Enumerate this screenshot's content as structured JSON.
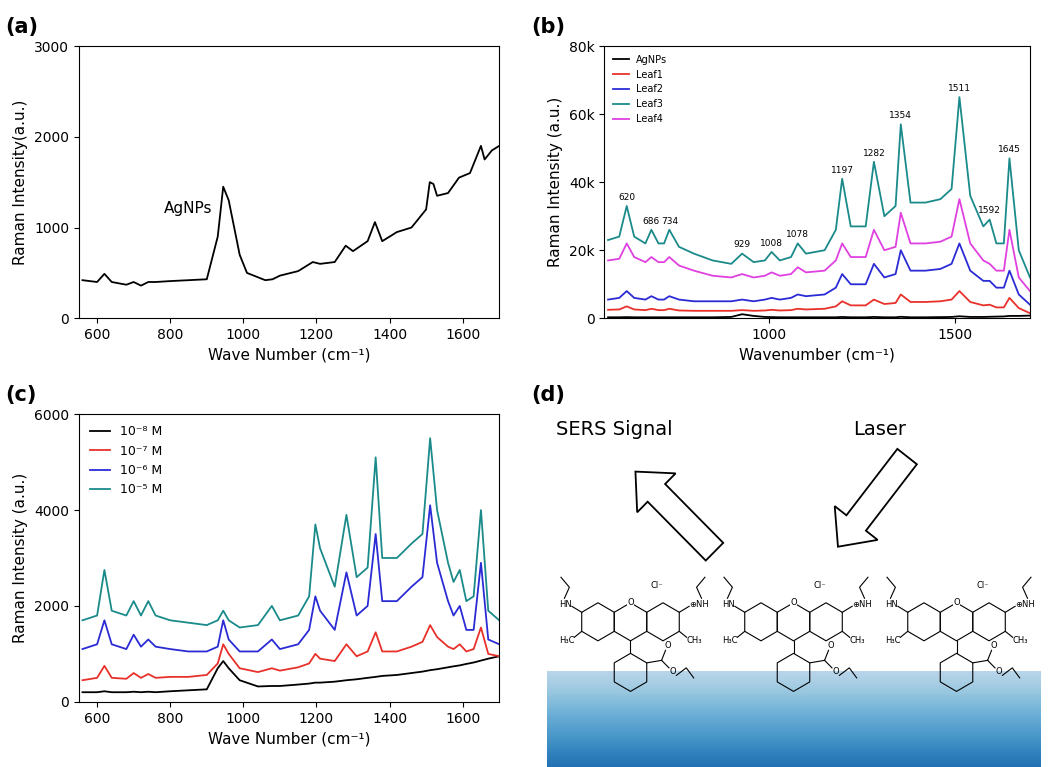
{
  "chart_data": [
    {
      "type": "line",
      "panel_label": "(a)",
      "x_label": "Wave Number (cm⁻¹)",
      "y_label": "Raman Intensity(a.u.)",
      "x": [
        560,
        600,
        620,
        640,
        680,
        700,
        720,
        740,
        760,
        800,
        850,
        900,
        930,
        945,
        960,
        975,
        990,
        1010,
        1060,
        1080,
        1100,
        1150,
        1190,
        1210,
        1250,
        1280,
        1300,
        1340,
        1360,
        1380,
        1420,
        1460,
        1500,
        1510,
        1520,
        1530,
        1560,
        1590,
        1620,
        1650,
        1660,
        1680,
        1700
      ],
      "values": [
        420,
        400,
        490,
        400,
        370,
        400,
        360,
        400,
        400,
        410,
        420,
        430,
        900,
        1450,
        1300,
        1000,
        700,
        500,
        420,
        430,
        470,
        520,
        620,
        600,
        620,
        800,
        740,
        850,
        1060,
        850,
        950,
        1000,
        1200,
        1500,
        1480,
        1350,
        1380,
        1550,
        1600,
        1900,
        1750,
        1850,
        1900
      ],
      "color": "#000000",
      "annotations": [
        {
          "text": "AgNPs",
          "x": 945
        }
      ],
      "xlim": [
        550,
        1700
      ],
      "xticks": [
        600,
        800,
        1000,
        1200,
        1400,
        1600
      ],
      "ylim": [
        0,
        3000
      ],
      "yticks": [
        0,
        1000,
        2000,
        3000
      ],
      "grid": false
    },
    {
      "type": "line",
      "panel_label": "(b)",
      "x_label": "Wavenumber (cm⁻¹)",
      "y_label": "Raman Intensity (a.u.)",
      "x": [
        570,
        600,
        620,
        640,
        670,
        686,
        705,
        720,
        734,
        760,
        800,
        850,
        900,
        929,
        960,
        990,
        1008,
        1030,
        1060,
        1078,
        1100,
        1150,
        1180,
        1197,
        1220,
        1260,
        1282,
        1310,
        1340,
        1354,
        1380,
        1420,
        1460,
        1490,
        1511,
        1540,
        1575,
        1592,
        1610,
        1630,
        1645,
        1670,
        1700
      ],
      "series": [
        {
          "name": "AgNPs",
          "color": "#000000",
          "values": [
            300,
            300,
            350,
            300,
            300,
            300,
            300,
            300,
            300,
            300,
            300,
            300,
            400,
            1200,
            700,
            400,
            350,
            300,
            300,
            300,
            300,
            300,
            300,
            400,
            300,
            300,
            400,
            300,
            300,
            450,
            300,
            300,
            350,
            400,
            600,
            400,
            400,
            450,
            500,
            550,
            700,
            700,
            800
          ]
        },
        {
          "name": "Leaf1",
          "color": "#e8312a",
          "values": [
            2500,
            2600,
            3500,
            2600,
            2400,
            2800,
            2400,
            2400,
            2800,
            2300,
            2200,
            2200,
            2200,
            2400,
            2200,
            2300,
            2500,
            2300,
            2400,
            2800,
            2600,
            2800,
            3500,
            5000,
            3800,
            3800,
            5500,
            4200,
            4500,
            7000,
            4800,
            4800,
            5000,
            5500,
            8000,
            4800,
            3800,
            4000,
            3200,
            3200,
            6000,
            3000,
            1500
          ]
        },
        {
          "name": "Leaf2",
          "color": "#2b2bd6",
          "values": [
            5500,
            6000,
            8000,
            6000,
            5500,
            6500,
            5500,
            5500,
            6500,
            5500,
            5000,
            5000,
            5000,
            5500,
            5000,
            5500,
            6000,
            5500,
            6000,
            7000,
            6500,
            7000,
            9000,
            13000,
            10000,
            10000,
            16000,
            12000,
            13000,
            20000,
            14000,
            14000,
            14500,
            16000,
            22000,
            14000,
            11000,
            11000,
            9000,
            9000,
            14000,
            7000,
            4000
          ]
        },
        {
          "name": "Leaf3",
          "color": "#1b8a8a",
          "values": [
            23000,
            24000,
            33000,
            24000,
            22000,
            26000,
            22000,
            22000,
            26000,
            21000,
            19000,
            17000,
            16000,
            19000,
            16500,
            17000,
            19500,
            17000,
            18000,
            22000,
            19000,
            20000,
            26000,
            41000,
            27000,
            27000,
            46000,
            30000,
            33000,
            57000,
            34000,
            34000,
            35000,
            38000,
            65000,
            36000,
            27000,
            29000,
            22000,
            22000,
            47000,
            20000,
            12000
          ]
        },
        {
          "name": "Leaf4",
          "color": "#e040e0",
          "values": [
            17000,
            17500,
            22000,
            18000,
            16500,
            18000,
            16500,
            16500,
            18000,
            15500,
            14000,
            12500,
            12000,
            13000,
            12000,
            12500,
            13500,
            12500,
            13000,
            15000,
            13500,
            14000,
            17000,
            22000,
            18000,
            18000,
            26000,
            20000,
            21000,
            31000,
            22000,
            22000,
            22500,
            24000,
            35000,
            22000,
            17000,
            16000,
            14000,
            14000,
            26000,
            12000,
            8000
          ]
        }
      ],
      "peak_labels": [
        620,
        686,
        734,
        929,
        1008,
        1078,
        1197,
        1282,
        1354,
        1511,
        1592,
        1645
      ],
      "xlim": [
        560,
        1700
      ],
      "xticks": [
        1000,
        1500
      ],
      "ylim": [
        0,
        80000
      ],
      "yticks": [
        0,
        {
          "value": 20000,
          "label": "20k"
        },
        {
          "value": 40000,
          "label": "40k"
        },
        {
          "value": 60000,
          "label": "60k"
        },
        {
          "value": 80000,
          "label": "80k"
        }
      ],
      "legend": "upper left",
      "grid": false
    },
    {
      "type": "line",
      "panel_label": "(c)",
      "x_label": "Wave Number (cm⁻¹)",
      "y_label": "Raman Intensity (a.u.)",
      "x": [
        560,
        600,
        620,
        640,
        680,
        700,
        720,
        740,
        760,
        800,
        850,
        900,
        930,
        945,
        960,
        990,
        1040,
        1078,
        1100,
        1150,
        1180,
        1197,
        1210,
        1250,
        1282,
        1310,
        1340,
        1362,
        1380,
        1420,
        1460,
        1490,
        1511,
        1530,
        1560,
        1575,
        1592,
        1610,
        1630,
        1650,
        1670,
        1700
      ],
      "series": [
        {
          "name": "10⁻⁸ M",
          "color": "#000000",
          "values": [
            200,
            200,
            220,
            200,
            200,
            210,
            200,
            210,
            200,
            220,
            240,
            260,
            700,
            850,
            700,
            450,
            320,
            330,
            330,
            360,
            380,
            400,
            400,
            420,
            450,
            470,
            500,
            520,
            540,
            560,
            600,
            630,
            660,
            680,
            720,
            740,
            760,
            790,
            820,
            860,
            900,
            950
          ]
        },
        {
          "name": "10⁻⁷ M",
          "color": "#e8312a",
          "values": [
            450,
            500,
            750,
            500,
            480,
            600,
            500,
            580,
            500,
            520,
            520,
            560,
            800,
            1200,
            1000,
            700,
            620,
            700,
            650,
            720,
            800,
            1000,
            900,
            850,
            1200,
            950,
            1050,
            1450,
            1050,
            1050,
            1150,
            1250,
            1600,
            1350,
            1150,
            1100,
            1200,
            1050,
            1100,
            1550,
            1000,
            950
          ]
        },
        {
          "name": "10⁻⁶ M",
          "color": "#2b2bd6",
          "values": [
            1100,
            1200,
            1700,
            1200,
            1100,
            1400,
            1150,
            1300,
            1150,
            1100,
            1050,
            1050,
            1150,
            1700,
            1300,
            1050,
            1050,
            1300,
            1100,
            1200,
            1500,
            2200,
            1900,
            1500,
            2700,
            1800,
            2000,
            3500,
            2100,
            2100,
            2400,
            2600,
            4100,
            2900,
            2100,
            1800,
            2000,
            1500,
            1500,
            2900,
            1300,
            1200
          ]
        },
        {
          "name": "10⁻⁵ M",
          "color": "#1b8a8a",
          "values": [
            1700,
            1800,
            2750,
            1900,
            1800,
            2100,
            1800,
            2100,
            1800,
            1700,
            1650,
            1600,
            1700,
            1900,
            1700,
            1550,
            1600,
            2000,
            1700,
            1800,
            2200,
            3700,
            3200,
            2400,
            3900,
            2600,
            2800,
            5100,
            3000,
            3000,
            3300,
            3500,
            5500,
            4000,
            2900,
            2500,
            2750,
            2100,
            2200,
            4000,
            1900,
            1700
          ]
        }
      ],
      "xlim": [
        550,
        1700
      ],
      "xticks": [
        600,
        800,
        1000,
        1200,
        1400,
        1600
      ],
      "ylim": [
        0,
        6000
      ],
      "yticks": [
        0,
        2000,
        4000,
        6000
      ],
      "legend": "upper left",
      "grid": false
    }
  ],
  "diagram": {
    "panel_label": "(d)",
    "arrows": {
      "out": "SERS Signal",
      "in": "Laser"
    },
    "molecule_count": 3,
    "atom_labels": {
      "amine_left": "HN",
      "methyl_left": "H₃C",
      "ring_oxygen": "O",
      "counterion": "Cl⁻",
      "amine_right": "⊕NH",
      "methyl_right": "CH₃",
      "ester_oxygen": "O"
    }
  }
}
